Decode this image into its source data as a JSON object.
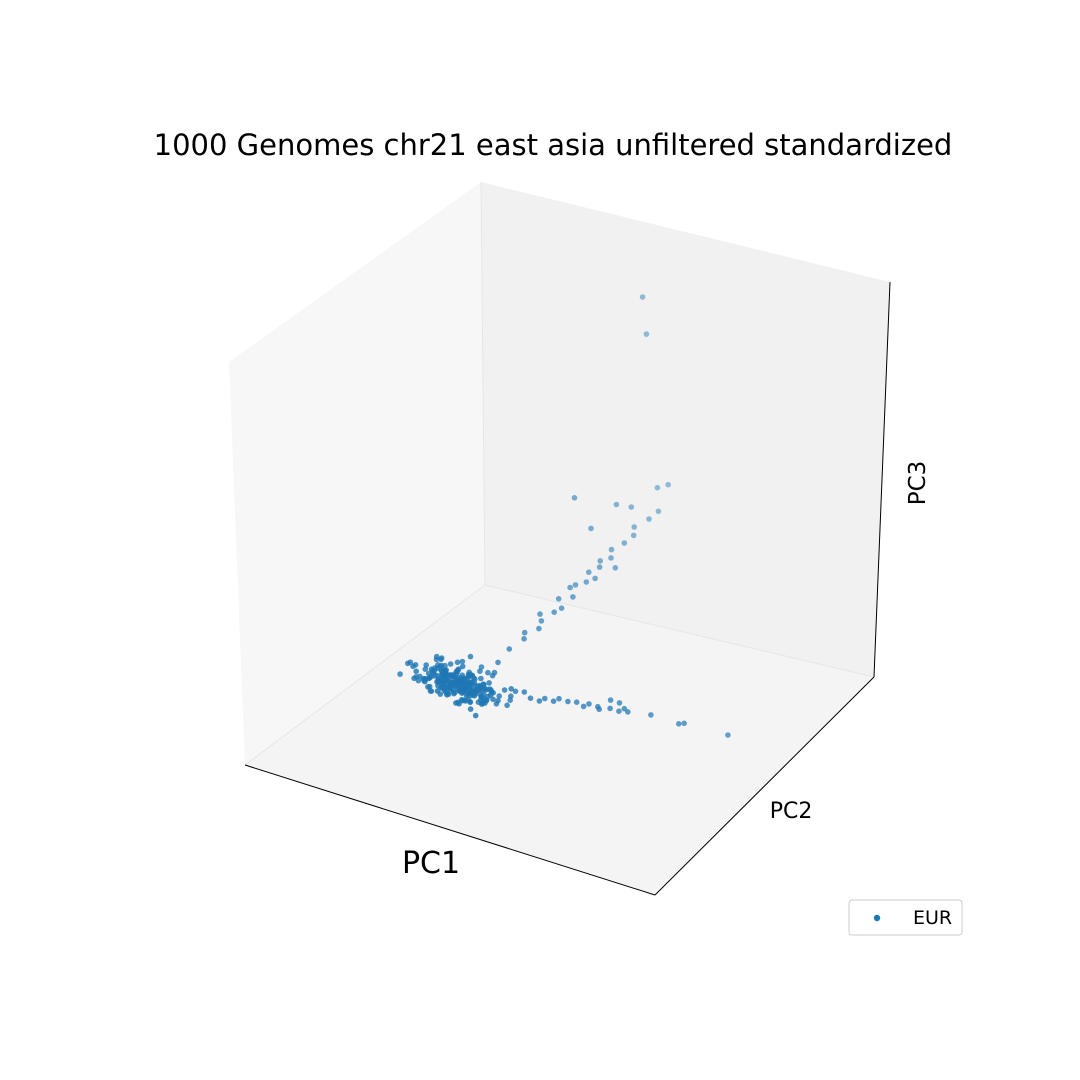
{
  "chart_data": {
    "type": "scatter",
    "projection": "3d",
    "title": "1000 Genomes chr21 east asia unfiltered standardized",
    "xlabel": "PC1",
    "ylabel": "PC2",
    "zlabel": "PC3",
    "ticks": false,
    "grid": false,
    "legend": {
      "placement": "lower-right",
      "entries": [
        "EUR"
      ]
    },
    "xlim": [
      -4,
      8
    ],
    "ylim": [
      -4,
      8
    ],
    "zlim": [
      -3,
      16
    ],
    "series": [
      {
        "name": "EUR",
        "color": "#1f77b4",
        "cluster": {
          "center": [
            0.0,
            0.0,
            0.0
          ],
          "spread": [
            0.55,
            0.25,
            0.35
          ],
          "count": 260
        },
        "points": [
          [
            -1.6,
            0.2,
            0.1
          ],
          [
            -1.2,
            -0.3,
            -0.1
          ],
          [
            -1.0,
            0.4,
            0.0
          ],
          [
            1.1,
            0.3,
            0.1
          ],
          [
            1.2,
            -0.2,
            0.0
          ],
          [
            1.4,
            0.1,
            0.1
          ],
          [
            1.0,
            -0.1,
            0.2
          ],
          [
            1.3,
            0.5,
            0.0
          ],
          [
            1.5,
            0.6,
            0.0
          ],
          [
            1.8,
            0.4,
            0.0
          ],
          [
            2.0,
            0.5,
            -0.1
          ],
          [
            2.1,
            0.6,
            0.0
          ],
          [
            2.3,
            0.7,
            -0.1
          ],
          [
            2.4,
            0.8,
            0.0
          ],
          [
            2.6,
            0.9,
            -0.1
          ],
          [
            2.8,
            1.0,
            -0.1
          ],
          [
            3.0,
            1.0,
            -0.2
          ],
          [
            3.1,
            1.1,
            -0.1
          ],
          [
            3.3,
            1.2,
            -0.2
          ],
          [
            3.4,
            1.1,
            -0.2
          ],
          [
            3.6,
            1.3,
            -0.2
          ],
          [
            3.8,
            1.4,
            -0.3
          ],
          [
            4.0,
            1.5,
            -0.3
          ],
          [
            3.5,
            1.5,
            0.0
          ],
          [
            3.7,
            1.6,
            -0.1
          ],
          [
            3.9,
            1.5,
            -0.2
          ],
          [
            4.5,
            1.8,
            -0.4
          ],
          [
            5.2,
            2.0,
            -0.6
          ],
          [
            5.3,
            2.1,
            -0.6
          ],
          [
            6.4,
            2.4,
            -0.8
          ],
          [
            0.5,
            1.0,
            0.6
          ],
          [
            0.6,
            1.4,
            1.0
          ],
          [
            0.8,
            1.8,
            1.3
          ],
          [
            0.7,
            2.0,
            1.4
          ],
          [
            1.0,
            2.2,
            1.6
          ],
          [
            0.9,
            2.5,
            1.7
          ],
          [
            1.1,
            2.8,
            2.0
          ],
          [
            1.2,
            3.0,
            2.1
          ],
          [
            1.0,
            3.2,
            2.3
          ],
          [
            1.3,
            3.4,
            2.4
          ],
          [
            1.2,
            3.7,
            2.7
          ],
          [
            1.4,
            3.9,
            2.8
          ],
          [
            1.3,
            4.2,
            3.0
          ],
          [
            1.5,
            4.4,
            3.2
          ],
          [
            1.4,
            4.6,
            3.3
          ],
          [
            1.6,
            4.8,
            3.4
          ],
          [
            1.5,
            5.0,
            3.6
          ],
          [
            1.7,
            5.3,
            3.8
          ],
          [
            1.8,
            5.6,
            4.0
          ],
          [
            0.8,
            2.6,
            1.9
          ],
          [
            1.1,
            3.6,
            2.6
          ],
          [
            1.6,
            4.0,
            3.0
          ],
          [
            1.9,
            4.5,
            3.3
          ],
          [
            1.7,
            5.8,
            4.2
          ],
          [
            1.9,
            6.2,
            4.4
          ],
          [
            2.0,
            6.5,
            4.6
          ],
          [
            1.5,
            6.0,
            4.9
          ],
          [
            1.3,
            5.6,
            5.2
          ],
          [
            1.2,
            4.5,
            4.8
          ],
          [
            1.8,
            6.8,
            5.4
          ],
          [
            2.0,
            7.0,
            5.5
          ],
          [
            0.9,
            4.2,
            6.3
          ],
          [
            1.6,
            6.5,
            14.5
          ],
          [
            1.7,
            6.5,
            12.8
          ]
        ]
      }
    ]
  }
}
